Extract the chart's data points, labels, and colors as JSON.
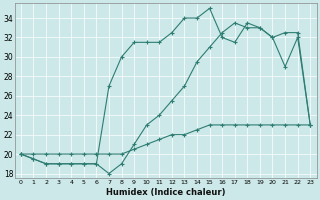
{
  "xlabel": "Humidex (Indice chaleur)",
  "bg_color": "#cce8e8",
  "line_color": "#2e7d72",
  "xlim": [
    -0.5,
    23.5
  ],
  "ylim": [
    17.5,
    35.5
  ],
  "yticks": [
    18,
    20,
    22,
    24,
    26,
    28,
    30,
    32,
    34
  ],
  "xticks": [
    0,
    1,
    2,
    3,
    4,
    5,
    6,
    7,
    8,
    9,
    10,
    11,
    12,
    13,
    14,
    15,
    16,
    17,
    18,
    19,
    20,
    21,
    22,
    23
  ],
  "series1_x": [
    0,
    1,
    2,
    3,
    4,
    5,
    6,
    7,
    8,
    9,
    10,
    11,
    12,
    13,
    14,
    15,
    16,
    17,
    18,
    19,
    20,
    21,
    22,
    23
  ],
  "series1_y": [
    20.0,
    20.0,
    20.0,
    20.0,
    20.0,
    20.0,
    20.0,
    20.0,
    20.0,
    20.5,
    21.0,
    21.5,
    22.0,
    22.0,
    22.5,
    23.0,
    23.0,
    23.0,
    23.0,
    23.0,
    23.0,
    23.0,
    23.0,
    23.0
  ],
  "series2_x": [
    0,
    1,
    2,
    3,
    4,
    5,
    6,
    7,
    8,
    9,
    10,
    11,
    12,
    13,
    14,
    15,
    16,
    17,
    18,
    19,
    20,
    21,
    22,
    23
  ],
  "series2_y": [
    20.0,
    19.5,
    19.0,
    19.0,
    19.0,
    19.0,
    19.0,
    18.0,
    19.0,
    21.0,
    23.0,
    24.0,
    25.5,
    27.0,
    29.5,
    31.0,
    32.5,
    33.5,
    33.0,
    33.0,
    32.0,
    32.5,
    32.5,
    23.0
  ],
  "series3_x": [
    0,
    1,
    2,
    3,
    4,
    5,
    6,
    7,
    8,
    9,
    10,
    11,
    12,
    13,
    14,
    15,
    16,
    17,
    18,
    19,
    20,
    21,
    22,
    23
  ],
  "series3_y": [
    20.0,
    19.5,
    19.0,
    19.0,
    19.0,
    19.0,
    19.0,
    27.0,
    30.0,
    31.5,
    31.5,
    31.5,
    32.5,
    34.0,
    34.0,
    35.0,
    32.0,
    31.5,
    33.5,
    33.0,
    32.0,
    29.0,
    32.0,
    23.0
  ]
}
